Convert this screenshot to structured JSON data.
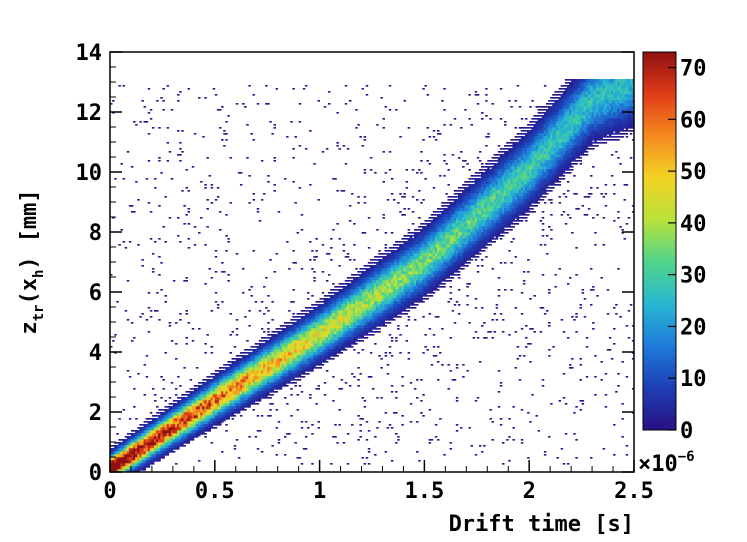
{
  "chart_data": {
    "type": "heatmap",
    "title": "",
    "xlabel": "Drift time [s]",
    "ylabel_main": "z",
    "ylabel_sub1": "tr",
    "ylabel_paren_open": "(x",
    "ylabel_sub2": "h",
    "ylabel_paren_close": ")",
    "ylabel_unit": "[mm]",
    "xlim": [
      0,
      2.5
    ],
    "ylim": [
      0,
      14
    ],
    "x_ticks": [
      "0",
      "0.5",
      "1",
      "1.5",
      "2",
      "2.5"
    ],
    "y_ticks": [
      "0",
      "2",
      "4",
      "6",
      "8",
      "10",
      "12",
      "14"
    ],
    "z_range": [
      0,
      73
    ],
    "z_ticks": [
      "0",
      "10",
      "20",
      "30",
      "40",
      "50",
      "60",
      "70"
    ],
    "z_exponent_base": "×10",
    "z_exponent_power": "−6",
    "colormap": [
      "#2a0f84",
      "#1e3fb4",
      "#1f7ad9",
      "#27b7d2",
      "#50d48c",
      "#b8e23a",
      "#f3d324",
      "#f58a1f",
      "#e03c19",
      "#8f1010"
    ],
    "band": {
      "description_points": [
        {
          "x": 0.0,
          "y": 0.1
        },
        {
          "x": 0.5,
          "y": 2.4
        },
        {
          "x": 1.0,
          "y": 4.6
        },
        {
          "x": 1.5,
          "y": 7.0
        },
        {
          "x": 2.0,
          "y": 10.1
        },
        {
          "x": 2.3,
          "y": 12.4
        },
        {
          "x": 2.5,
          "y": 13.0
        }
      ],
      "peak_density_x": 0.2
    },
    "grid": false,
    "legend": "colorbar right"
  }
}
